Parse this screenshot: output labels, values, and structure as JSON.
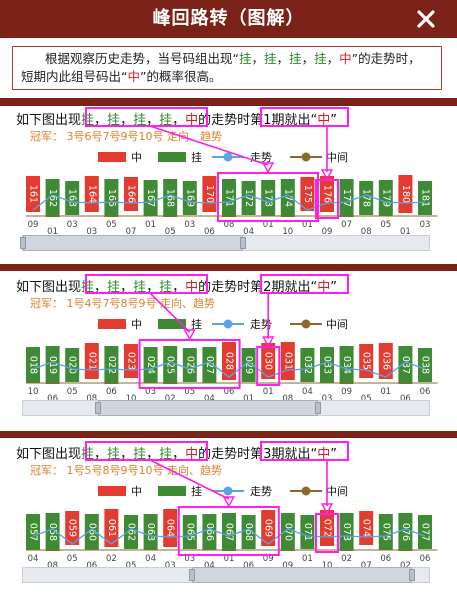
{
  "header": {
    "title": "峰回路转（图解）",
    "close_icon": "close-x-icon"
  },
  "intro": {
    "p1": "根据观察历史走势，当号码组出现“",
    "w1": "挂",
    "sep": "，",
    "w2": "挂",
    "w3": "挂",
    "w4": "挂",
    "w5": "中",
    "p2": "”的走势时，短期内此组号码出“",
    "w6": "中",
    "p3": "”的概率很高。"
  },
  "legend": {
    "hit": "中",
    "miss": "挂",
    "trend": "走势",
    "middle": "中间"
  },
  "colors": {
    "hit": "#e23b2f",
    "miss": "#3f8a34",
    "trend": "#5ba3e6",
    "middle": "#8a6a2a",
    "box": "#ff1fe8",
    "brand": "#7a2118",
    "champion": "#e0812b"
  },
  "sections": [
    {
      "heading": {
        "a": "如下图出现",
        "g1": "挂",
        "c": "，",
        "g2": "挂",
        "g3": "挂",
        "g4": "挂",
        "h": "中",
        "b": "的走势时",
        "box_text": "第1期就出",
        "q1": "“",
        "hz": "中",
        "q2": "”"
      },
      "champion": "冠军：  3号6号7号9号10号  走向、趋势",
      "chart_data": {
        "type": "bar",
        "bars": [
          {
            "label": "161",
            "status": "hit",
            "issue": "09"
          },
          {
            "label": "162",
            "status": "miss",
            "issue": "01"
          },
          {
            "label": "163",
            "status": "miss",
            "issue": "03"
          },
          {
            "label": "164",
            "status": "hit",
            "issue": "03"
          },
          {
            "label": "165",
            "status": "miss",
            "issue": "05"
          },
          {
            "label": "166",
            "status": "hit",
            "issue": "07"
          },
          {
            "label": "167",
            "status": "miss",
            "issue": "01"
          },
          {
            "label": "168",
            "status": "miss",
            "issue": "05"
          },
          {
            "label": "169",
            "status": "miss",
            "issue": "03"
          },
          {
            "label": "170",
            "status": "hit",
            "issue": "06"
          },
          {
            "label": "171",
            "status": "miss",
            "issue": "08"
          },
          {
            "label": "172",
            "status": "miss",
            "issue": "04"
          },
          {
            "label": "173",
            "status": "miss",
            "issue": "01"
          },
          {
            "label": "174",
            "status": "miss",
            "issue": "10"
          },
          {
            "label": "175",
            "status": "hit",
            "issue": "01"
          },
          {
            "label": "176",
            "status": "hit",
            "issue": "09"
          },
          {
            "label": "177",
            "status": "miss",
            "issue": "07"
          },
          {
            "label": "178",
            "status": "miss",
            "issue": "08"
          },
          {
            "label": "179",
            "status": "miss",
            "issue": "05"
          },
          {
            "label": "180",
            "status": "hit",
            "issue": "01"
          },
          {
            "label": "181",
            "status": "miss",
            "issue": "03"
          }
        ],
        "pattern_range": [
          10,
          14
        ],
        "result_index": 15,
        "slider_value": 0.0
      }
    },
    {
      "heading": {
        "a": "如下图出现",
        "g1": "挂",
        "c": "，",
        "g2": "挂",
        "g3": "挂",
        "g4": "挂",
        "h": "中",
        "b": "的走势时",
        "box_text": "第2期就出",
        "q1": "“",
        "hz": "中",
        "q2": "”"
      },
      "champion": "冠军：  1号4号7号8号9号  走向、趋势",
      "chart_data": {
        "type": "bar",
        "bars": [
          {
            "label": "018",
            "status": "miss",
            "issue": "10"
          },
          {
            "label": "019",
            "status": "miss",
            "issue": "06"
          },
          {
            "label": "020",
            "status": "miss",
            "issue": "05"
          },
          {
            "label": "021",
            "status": "hit",
            "issue": "08"
          },
          {
            "label": "022",
            "status": "miss",
            "issue": "06"
          },
          {
            "label": "023",
            "status": "hit",
            "issue": "10"
          },
          {
            "label": "024",
            "status": "miss",
            "issue": "03"
          },
          {
            "label": "025",
            "status": "miss",
            "issue": "02"
          },
          {
            "label": "026",
            "status": "miss",
            "issue": "05"
          },
          {
            "label": "027",
            "status": "miss",
            "issue": "04"
          },
          {
            "label": "028",
            "status": "hit",
            "issue": "06"
          },
          {
            "label": "029",
            "status": "miss",
            "issue": "01"
          },
          {
            "label": "030",
            "status": "hit",
            "issue": "01"
          },
          {
            "label": "031",
            "status": "hit",
            "issue": "08"
          },
          {
            "label": "032",
            "status": "miss",
            "issue": "04"
          },
          {
            "label": "033",
            "status": "miss",
            "issue": "03"
          },
          {
            "label": "034",
            "status": "miss",
            "issue": "09"
          },
          {
            "label": "035",
            "status": "hit",
            "issue": "05"
          },
          {
            "label": "036",
            "status": "hit",
            "issue": "01"
          },
          {
            "label": "037",
            "status": "miss",
            "issue": "06"
          },
          {
            "label": "038",
            "status": "miss",
            "issue": "06"
          }
        ],
        "pattern_range": [
          6,
          10
        ],
        "result_index": 12,
        "slider_value": 0.4
      }
    },
    {
      "heading": {
        "a": "如下图出现",
        "g1": "挂",
        "c": "，",
        "g2": "挂",
        "g3": "挂",
        "g4": "挂",
        "h": "中",
        "b": "的走势时",
        "box_text": "第3期就出",
        "q1": "“",
        "hz": "中",
        "q2": "”"
      },
      "champion": "冠军：  1号5号8号9号10号  走向、趋势",
      "chart_data": {
        "type": "bar",
        "bars": [
          {
            "label": "057",
            "status": "miss",
            "issue": "04"
          },
          {
            "label": "058",
            "status": "miss",
            "issue": "08"
          },
          {
            "label": "059",
            "status": "hit",
            "issue": "05"
          },
          {
            "label": "060",
            "status": "miss",
            "issue": "06"
          },
          {
            "label": "061",
            "status": "hit",
            "issue": "02"
          },
          {
            "label": "062",
            "status": "miss",
            "issue": "05"
          },
          {
            "label": "063",
            "status": "miss",
            "issue": "04"
          },
          {
            "label": "064",
            "status": "hit",
            "issue": "03"
          },
          {
            "label": "065",
            "status": "miss",
            "issue": "03"
          },
          {
            "label": "066",
            "status": "miss",
            "issue": "04"
          },
          {
            "label": "067",
            "status": "miss",
            "issue": "01"
          },
          {
            "label": "068",
            "status": "miss",
            "issue": "06"
          },
          {
            "label": "069",
            "status": "hit",
            "issue": "09"
          },
          {
            "label": "070",
            "status": "miss",
            "issue": "09"
          },
          {
            "label": "071",
            "status": "miss",
            "issue": "01"
          },
          {
            "label": "072",
            "status": "hit",
            "issue": "10"
          },
          {
            "label": "073",
            "status": "miss",
            "issue": "02"
          },
          {
            "label": "074",
            "status": "hit",
            "issue": "07"
          },
          {
            "label": "075",
            "status": "miss",
            "issue": "06"
          },
          {
            "label": "076",
            "status": "miss",
            "issue": "02"
          },
          {
            "label": "077",
            "status": "miss",
            "issue": "06"
          }
        ],
        "pattern_range": [
          8,
          12
        ],
        "result_index": 15,
        "slider_value": 0.9
      }
    }
  ]
}
